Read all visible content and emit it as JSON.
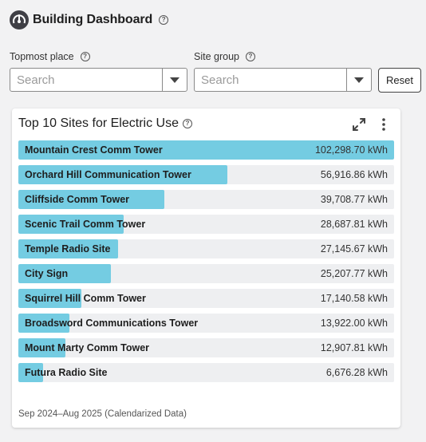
{
  "header": {
    "title": "Building Dashboard",
    "help_glyph": "?"
  },
  "filters": {
    "topmost_place": {
      "label": "Topmost place",
      "placeholder": "Search",
      "value": ""
    },
    "site_group": {
      "label": "Site group",
      "placeholder": "Search",
      "value": ""
    },
    "reset_label": "Reset"
  },
  "card": {
    "title": "Top 10 Sites for Electric Use",
    "footer": "Sep 2024–Aug 2025 (Calendarized Data)",
    "icons": {
      "expand": "expand-icon",
      "more": "more-vertical-icon"
    }
  },
  "chart_data": {
    "type": "bar",
    "orientation": "horizontal",
    "unit": "kWh",
    "max_value": 102298.7,
    "categories": [
      "Mountain Crest Comm Tower",
      "Orchard Hill Communication Tower",
      "Cliffside Comm Tower",
      "Scenic Trail Comm Tower",
      "Temple Radio Site",
      "City Sign",
      "Squirrel Hill Comm Tower",
      "Broadsword Communications Tower",
      "Mount Marty Comm Tower",
      "Futura Radio Site"
    ],
    "values": [
      102298.7,
      56916.86,
      39708.77,
      28687.81,
      27145.67,
      25207.77,
      17140.58,
      13922.0,
      12907.81,
      6676.28
    ],
    "value_labels": [
      "102,298.70 kWh",
      "56,916.86 kWh",
      "39,708.77 kWh",
      "28,687.81 kWh",
      "27,145.67 kWh",
      "25,207.77 kWh",
      "17,140.58 kWh",
      "13,922.00 kWh",
      "12,907.81 kWh",
      "6,676.28 kWh"
    ],
    "bar_color": "#74cce2",
    "track_color": "#eeeff1"
  }
}
